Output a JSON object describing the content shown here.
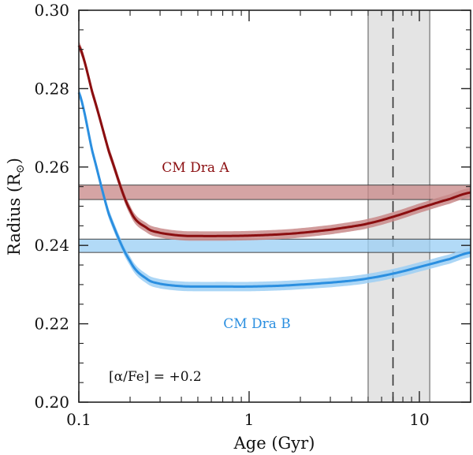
{
  "chart_data": {
    "type": "line",
    "xscale": "log",
    "xlabel": "Age (Gyr)",
    "ylabel_main": "Radius (R",
    "ylabel_sub": "⊙",
    "ylabel_close": ")",
    "xlim": [
      0.1,
      20
    ],
    "ylim": [
      0.2,
      0.3
    ],
    "xticks": [
      0.1,
      1,
      10
    ],
    "xtick_labels": [
      "0.1",
      "1",
      "10"
    ],
    "yticks": [
      0.2,
      0.22,
      0.24,
      0.26,
      0.28,
      0.3
    ],
    "ytick_labels": [
      "0.20",
      "0.22",
      "0.24",
      "0.26",
      "0.28",
      "0.30"
    ],
    "colors": {
      "a_line": "#8b0e10",
      "a_band": "#c98a8a",
      "b_line": "#2b8fe0",
      "b_band": "#9ccff5",
      "age_band": "#e4e4e4",
      "axis": "#222222"
    },
    "series": [
      {
        "name": "CM Dra A",
        "x": [
          0.1,
          0.12,
          0.15,
          0.2,
          0.25,
          0.3,
          0.4,
          0.5,
          0.7,
          1,
          1.5,
          2,
          3,
          4,
          5,
          7,
          10,
          15,
          20
        ],
        "y": [
          0.291,
          0.279,
          0.264,
          0.249,
          0.2445,
          0.2432,
          0.2425,
          0.2424,
          0.2424,
          0.2425,
          0.2428,
          0.2432,
          0.244,
          0.2448,
          0.2456,
          0.2473,
          0.2495,
          0.2518,
          0.2535
        ],
        "band_width": 0.0012
      },
      {
        "name": "CM Dra B",
        "x": [
          0.1,
          0.12,
          0.15,
          0.2,
          0.25,
          0.3,
          0.4,
          0.5,
          0.7,
          1,
          1.5,
          2,
          3,
          4,
          5,
          7,
          10,
          15,
          20
        ],
        "y": [
          0.279,
          0.264,
          0.248,
          0.236,
          0.2315,
          0.2302,
          0.2296,
          0.2295,
          0.2295,
          0.2295,
          0.2297,
          0.23,
          0.2305,
          0.231,
          0.2316,
          0.2328,
          0.2345,
          0.2365,
          0.2382
        ],
        "band_width": 0.0012
      }
    ],
    "hbands": [
      {
        "name": "CM Dra A observed radius",
        "y0": 0.2517,
        "y1": 0.2554
      },
      {
        "name": "CM Dra B observed radius",
        "y0": 0.2382,
        "y1": 0.2416
      }
    ],
    "vband": {
      "name": "age estimate",
      "x0": 5,
      "x1": 11.5,
      "center": 7
    },
    "annotations": {
      "label_a": "CM Dra A",
      "label_b": "CM Dra B",
      "alpha_fe": "[α/Fe] = +0.2"
    }
  }
}
